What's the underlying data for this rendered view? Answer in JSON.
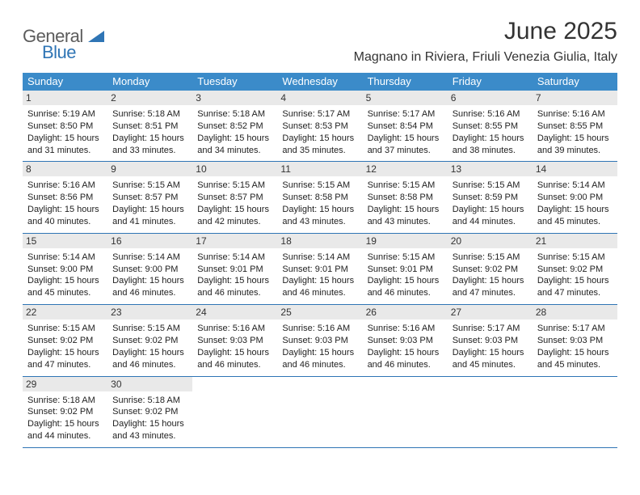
{
  "logo": {
    "text1": "General",
    "text2": "Blue"
  },
  "title": "June 2025",
  "location": "Magnano in Riviera, Friuli Venezia Giulia, Italy",
  "colors": {
    "header_bg": "#3b8bc9",
    "header_fg": "#ffffff",
    "rule": "#2f75b5",
    "daynum_bg": "#e9e9e9",
    "text": "#222222",
    "logo_gray": "#5c5c5c",
    "logo_blue": "#2f75b5",
    "page_bg": "#ffffff"
  },
  "day_headers": [
    "Sunday",
    "Monday",
    "Tuesday",
    "Wednesday",
    "Thursday",
    "Friday",
    "Saturday"
  ],
  "weeks": [
    [
      {
        "n": "1",
        "sr": "5:19 AM",
        "ss": "8:50 PM",
        "dl": "15 hours and 31 minutes."
      },
      {
        "n": "2",
        "sr": "5:18 AM",
        "ss": "8:51 PM",
        "dl": "15 hours and 33 minutes."
      },
      {
        "n": "3",
        "sr": "5:18 AM",
        "ss": "8:52 PM",
        "dl": "15 hours and 34 minutes."
      },
      {
        "n": "4",
        "sr": "5:17 AM",
        "ss": "8:53 PM",
        "dl": "15 hours and 35 minutes."
      },
      {
        "n": "5",
        "sr": "5:17 AM",
        "ss": "8:54 PM",
        "dl": "15 hours and 37 minutes."
      },
      {
        "n": "6",
        "sr": "5:16 AM",
        "ss": "8:55 PM",
        "dl": "15 hours and 38 minutes."
      },
      {
        "n": "7",
        "sr": "5:16 AM",
        "ss": "8:55 PM",
        "dl": "15 hours and 39 minutes."
      }
    ],
    [
      {
        "n": "8",
        "sr": "5:16 AM",
        "ss": "8:56 PM",
        "dl": "15 hours and 40 minutes."
      },
      {
        "n": "9",
        "sr": "5:15 AM",
        "ss": "8:57 PM",
        "dl": "15 hours and 41 minutes."
      },
      {
        "n": "10",
        "sr": "5:15 AM",
        "ss": "8:57 PM",
        "dl": "15 hours and 42 minutes."
      },
      {
        "n": "11",
        "sr": "5:15 AM",
        "ss": "8:58 PM",
        "dl": "15 hours and 43 minutes."
      },
      {
        "n": "12",
        "sr": "5:15 AM",
        "ss": "8:58 PM",
        "dl": "15 hours and 43 minutes."
      },
      {
        "n": "13",
        "sr": "5:15 AM",
        "ss": "8:59 PM",
        "dl": "15 hours and 44 minutes."
      },
      {
        "n": "14",
        "sr": "5:14 AM",
        "ss": "9:00 PM",
        "dl": "15 hours and 45 minutes."
      }
    ],
    [
      {
        "n": "15",
        "sr": "5:14 AM",
        "ss": "9:00 PM",
        "dl": "15 hours and 45 minutes."
      },
      {
        "n": "16",
        "sr": "5:14 AM",
        "ss": "9:00 PM",
        "dl": "15 hours and 46 minutes."
      },
      {
        "n": "17",
        "sr": "5:14 AM",
        "ss": "9:01 PM",
        "dl": "15 hours and 46 minutes."
      },
      {
        "n": "18",
        "sr": "5:14 AM",
        "ss": "9:01 PM",
        "dl": "15 hours and 46 minutes."
      },
      {
        "n": "19",
        "sr": "5:15 AM",
        "ss": "9:01 PM",
        "dl": "15 hours and 46 minutes."
      },
      {
        "n": "20",
        "sr": "5:15 AM",
        "ss": "9:02 PM",
        "dl": "15 hours and 47 minutes."
      },
      {
        "n": "21",
        "sr": "5:15 AM",
        "ss": "9:02 PM",
        "dl": "15 hours and 47 minutes."
      }
    ],
    [
      {
        "n": "22",
        "sr": "5:15 AM",
        "ss": "9:02 PM",
        "dl": "15 hours and 47 minutes."
      },
      {
        "n": "23",
        "sr": "5:15 AM",
        "ss": "9:02 PM",
        "dl": "15 hours and 46 minutes."
      },
      {
        "n": "24",
        "sr": "5:16 AM",
        "ss": "9:03 PM",
        "dl": "15 hours and 46 minutes."
      },
      {
        "n": "25",
        "sr": "5:16 AM",
        "ss": "9:03 PM",
        "dl": "15 hours and 46 minutes."
      },
      {
        "n": "26",
        "sr": "5:16 AM",
        "ss": "9:03 PM",
        "dl": "15 hours and 46 minutes."
      },
      {
        "n": "27",
        "sr": "5:17 AM",
        "ss": "9:03 PM",
        "dl": "15 hours and 45 minutes."
      },
      {
        "n": "28",
        "sr": "5:17 AM",
        "ss": "9:03 PM",
        "dl": "15 hours and 45 minutes."
      }
    ],
    [
      {
        "n": "29",
        "sr": "5:18 AM",
        "ss": "9:02 PM",
        "dl": "15 hours and 44 minutes."
      },
      {
        "n": "30",
        "sr": "5:18 AM",
        "ss": "9:02 PM",
        "dl": "15 hours and 43 minutes."
      },
      {
        "blank": true
      },
      {
        "blank": true
      },
      {
        "blank": true
      },
      {
        "blank": true
      },
      {
        "blank": true
      }
    ]
  ],
  "labels": {
    "sunrise": "Sunrise:",
    "sunset": "Sunset:",
    "daylight": "Daylight:"
  }
}
